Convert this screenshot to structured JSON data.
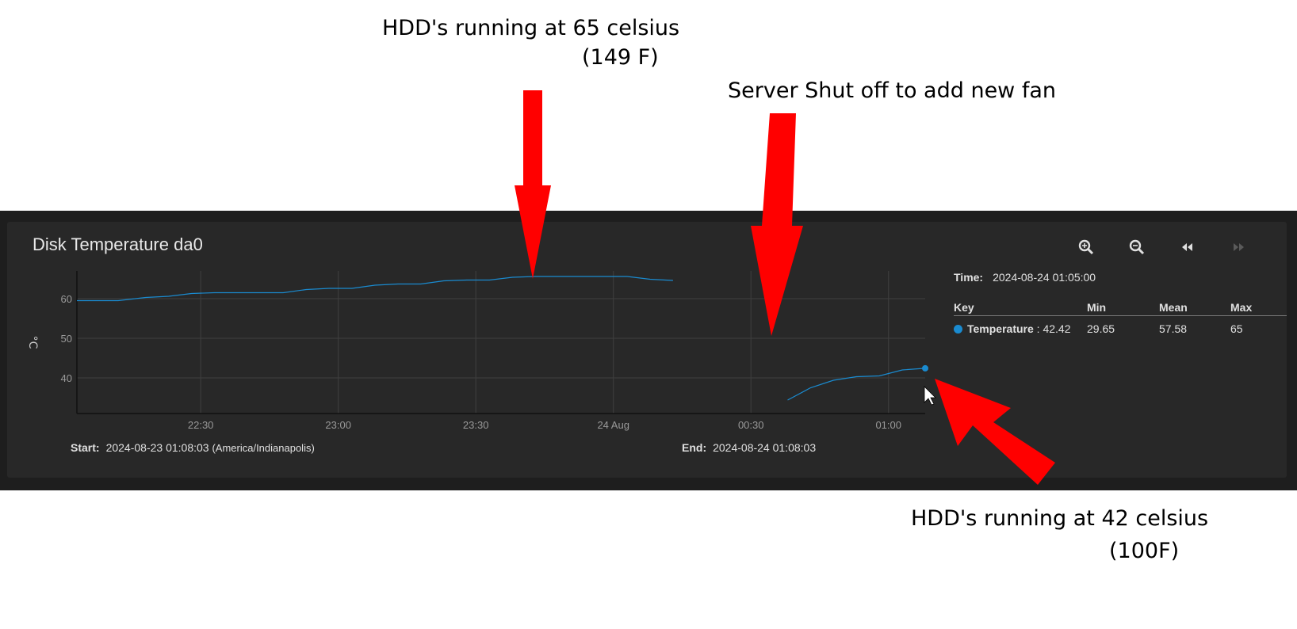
{
  "annotations": {
    "top_left_line1": "HDD's running at 65 celsius",
    "top_left_line2": "(149 F)",
    "top_right": "Server Shut off to add new fan",
    "bottom_line1": "HDD's running at 42 celsius",
    "bottom_line2": "(100F)"
  },
  "card": {
    "title": "Disk Temperature da0",
    "toolbar": [
      "zoom-in-icon",
      "zoom-out-icon",
      "rewind-icon",
      "fast-forward-icon"
    ]
  },
  "legend": {
    "time_label": "Time:",
    "time_value": "2024-08-24 01:05:00",
    "headers": {
      "key": "Key",
      "min": "Min",
      "mean": "Mean",
      "max": "Max"
    },
    "row": {
      "name": "Temperature",
      "current": ": 42.42",
      "min": "29.65",
      "mean": "57.58",
      "max": "65"
    }
  },
  "range": {
    "start_label": "Start:",
    "start_value": "2024-08-23 01:08:03",
    "start_tz": "(America/Indianapolis)",
    "end_label": "End:",
    "end_value": "2024-08-24 01:08:03"
  },
  "colors": {
    "series": "#1a8bd0",
    "arrow": "#ff0000",
    "background": "#282828"
  },
  "chart_data": {
    "type": "line",
    "ylabel": "°C",
    "ylim": [
      31,
      67
    ],
    "xlim": [
      "2024-08-23 22:03",
      "2024-08-24 01:08"
    ],
    "x_ticks": [
      "22:30",
      "23:00",
      "23:30",
      "24 Aug",
      "00:30",
      "01:00"
    ],
    "y_ticks": [
      40,
      50,
      60
    ],
    "grid": true,
    "series": [
      {
        "name": "Temperature",
        "segments": [
          {
            "x": [
              "2024-08-23 22:03",
              "2024-08-23 22:12",
              "2024-08-23 22:18",
              "2024-08-23 22:23",
              "2024-08-23 22:28",
              "2024-08-23 22:33",
              "2024-08-23 22:48",
              "2024-08-23 22:53",
              "2024-08-23 22:58",
              "2024-08-23 23:03",
              "2024-08-23 23:08",
              "2024-08-23 23:13",
              "2024-08-23 23:18",
              "2024-08-23 23:23",
              "2024-08-23 23:28",
              "2024-08-23 23:33",
              "2024-08-23 23:38",
              "2024-08-23 23:43",
              "2024-08-23 23:58",
              "2024-08-24 00:03",
              "2024-08-24 00:08",
              "2024-08-24 00:13"
            ],
            "y": [
              59.5,
              59.5,
              60.3,
              60.6,
              61.3,
              61.5,
              61.5,
              62.3,
              62.6,
              62.6,
              63.4,
              63.7,
              63.7,
              64.5,
              64.7,
              64.7,
              65.4,
              65.6,
              65.6,
              65.6,
              64.9,
              64.6
            ]
          },
          {
            "x": [
              "2024-08-24 00:38",
              "2024-08-24 00:43",
              "2024-08-24 00:48",
              "2024-08-24 00:53",
              "2024-08-24 00:58",
              "2024-08-24 01:03",
              "2024-08-24 01:08"
            ],
            "y": [
              34.4,
              37.5,
              39.4,
              40.3,
              40.5,
              42.0,
              42.42
            ]
          }
        ]
      }
    ]
  }
}
